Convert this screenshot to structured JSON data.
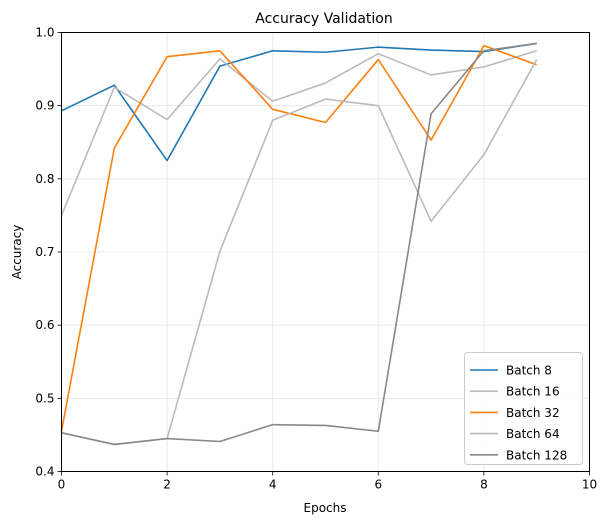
{
  "chart_data": {
    "type": "line",
    "title": "Accuracy Validation",
    "xlabel": "Epochs",
    "ylabel": "Accuracy",
    "xlim": [
      0,
      10
    ],
    "ylim": [
      0.4,
      1.0
    ],
    "xticks": [
      0,
      2,
      4,
      6,
      8,
      10
    ],
    "yticks": [
      0.4,
      0.5,
      0.6,
      0.7,
      0.8,
      0.9,
      1.0
    ],
    "xtick_labels": [
      "0",
      "2",
      "4",
      "6",
      "8",
      "10"
    ],
    "ytick_labels": [
      "0.4",
      "0.5",
      "0.6",
      "0.7",
      "0.8",
      "0.9",
      "1.0"
    ],
    "grid": true,
    "legend_position": "bottom-right",
    "x": [
      0,
      1,
      2,
      3,
      4,
      5,
      6,
      7,
      8,
      9
    ],
    "series": [
      {
        "name": "Batch 8",
        "color": "#1f77b4",
        "values": [
          0.893,
          0.928,
          0.825,
          0.954,
          0.975,
          0.973,
          0.98,
          0.976,
          0.974,
          0.985
        ]
      },
      {
        "name": "Batch 16",
        "color": "#bbbbbb",
        "values": [
          0.75,
          0.925,
          0.881,
          0.964,
          0.906,
          0.931,
          0.971,
          0.942,
          0.953,
          0.975
        ]
      },
      {
        "name": "Batch 32",
        "color": "#ff7f0e",
        "values": [
          0.455,
          0.842,
          0.967,
          0.975,
          0.895,
          0.877,
          0.963,
          0.853,
          0.982,
          0.956
        ]
      },
      {
        "name": "Batch 64",
        "color": "#bbbbbb",
        "values": [
          0.453,
          0.437,
          0.445,
          0.701,
          0.88,
          0.909,
          0.9,
          0.742,
          0.833,
          0.963
        ]
      },
      {
        "name": "Batch 128",
        "color": "#888888",
        "values": [
          0.453,
          0.437,
          0.445,
          0.441,
          0.464,
          0.463,
          0.455,
          0.889,
          0.975,
          0.985
        ]
      }
    ]
  }
}
